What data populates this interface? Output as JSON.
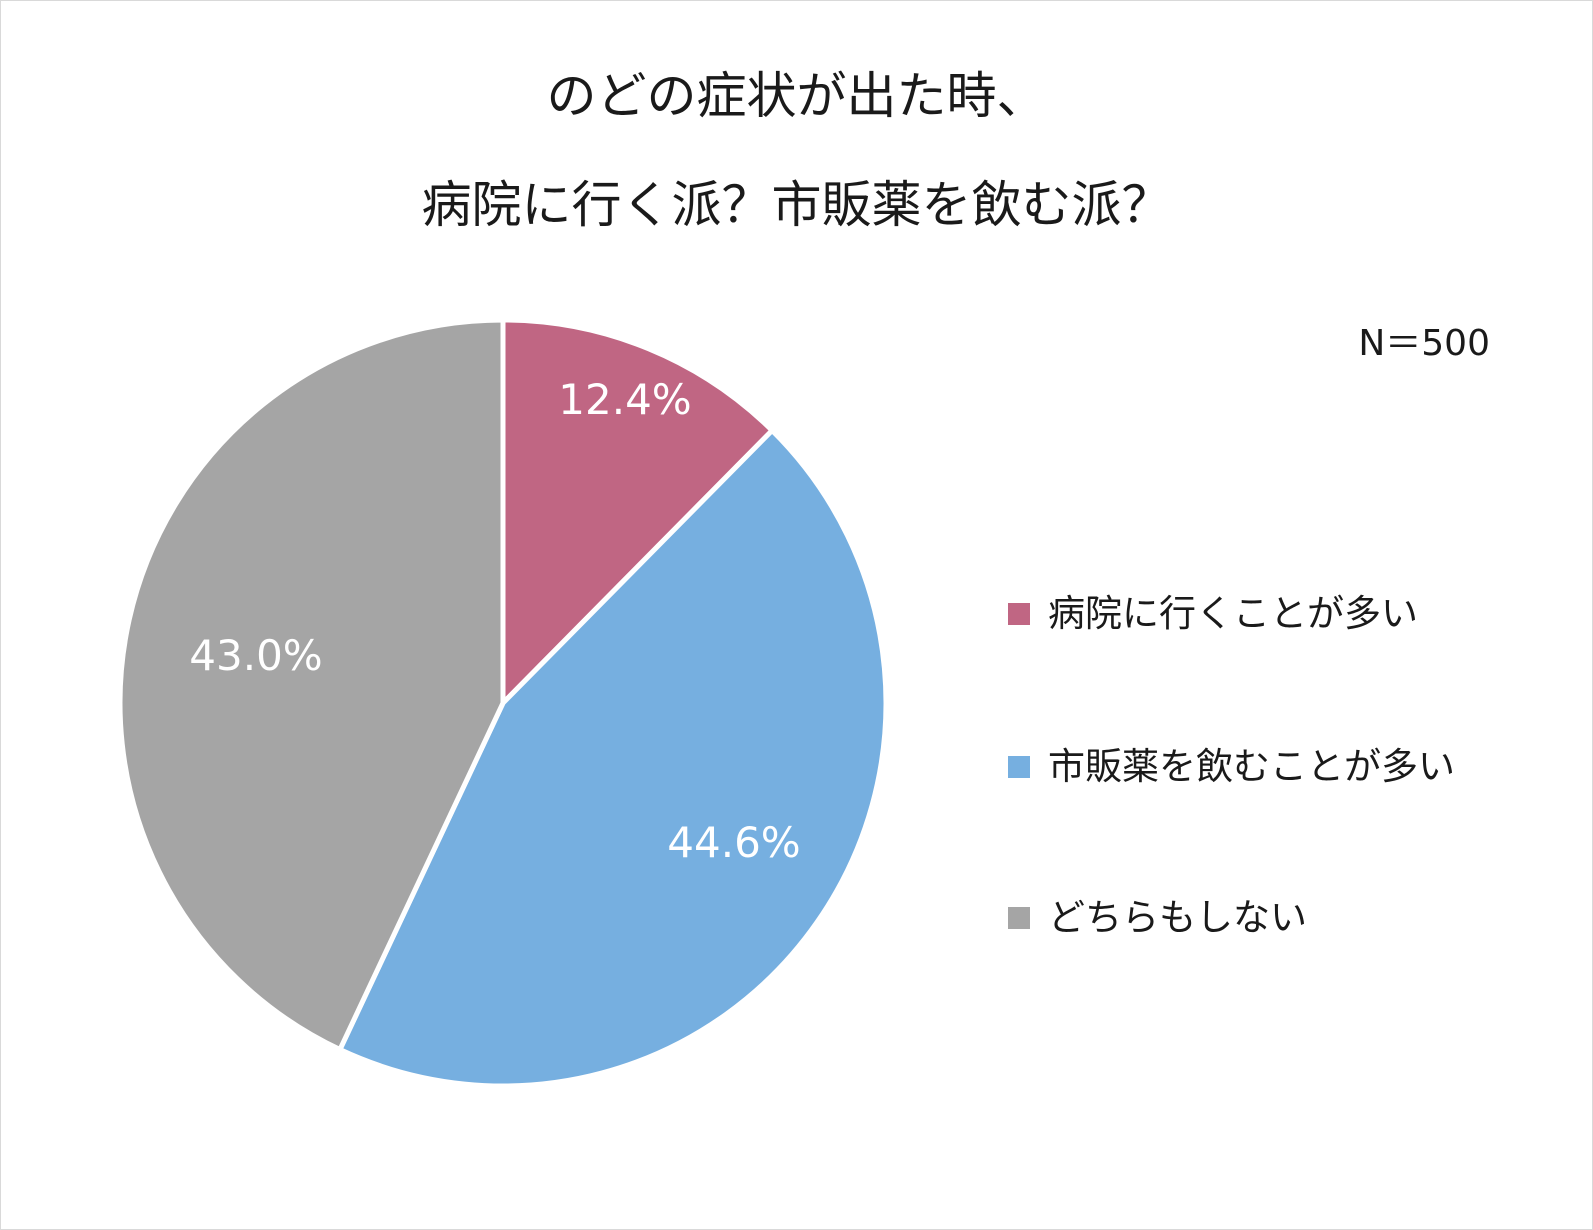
{
  "chart_data": {
    "type": "pie",
    "title": "のどの症状が出た時、\n病院に行く派？市販薬を飲む派？",
    "title_lines": [
      "のどの症状が出た時、",
      "病院に行く派？市販薬を飲む派？"
    ],
    "sample_size_label": "N＝500",
    "categories": [
      "病院に行くことが多い",
      "市販薬を飲むことが多い",
      "どちらもしない"
    ],
    "values": [
      12.4,
      44.6,
      43.0
    ],
    "data_labels": [
      "12.4%",
      "44.6%",
      "43.0%"
    ],
    "colors": [
      "#c06683",
      "#76afe0",
      "#a5a5a5"
    ],
    "start_angle_deg": 0,
    "direction": "clockwise",
    "legend": {
      "position": "right",
      "entries": [
        "病院に行くことが多い",
        "市販薬を飲むことが多い",
        "どちらもしない"
      ]
    }
  }
}
